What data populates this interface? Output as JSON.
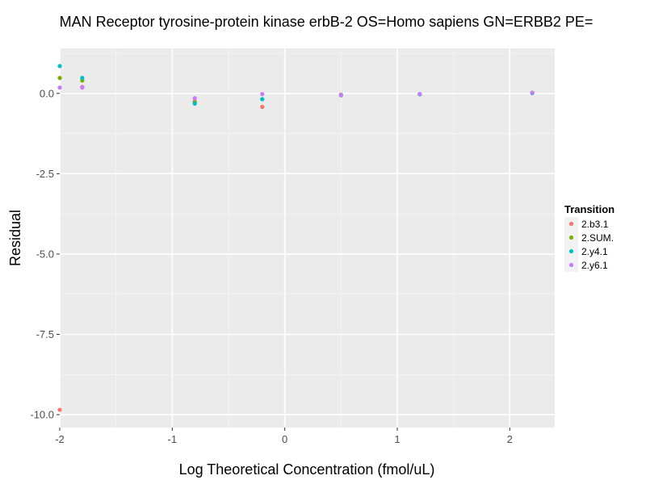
{
  "chart_data": {
    "type": "scatter",
    "title": "MAN Receptor tyrosine-protein kinase erbB-2 OS=Homo sapiens GN=ERBB2 PE=",
    "xlabel": "Log Theoretical Concentration (fmol/uL)",
    "ylabel": "Residual",
    "xlim": [
      -2.0,
      2.4
    ],
    "ylim": [
      -10.4,
      1.4
    ],
    "x_ticks": [
      -2,
      -1,
      0,
      1,
      2
    ],
    "x_tick_labels": [
      "-2",
      "-1",
      "0",
      "1",
      "2"
    ],
    "y_ticks": [
      0.0,
      -2.5,
      -5.0,
      -7.5,
      -10.0
    ],
    "y_tick_labels": [
      "0.0",
      "-2.5",
      "-5.0",
      "-7.5",
      "-10.0"
    ],
    "grid": true,
    "legend": {
      "title": "Transition",
      "position": "right"
    },
    "series": [
      {
        "name": "2.b3.1",
        "color": "#F8766D",
        "points": [
          [
            -2.0,
            -9.85
          ],
          [
            -1.8,
            0.2
          ],
          [
            -0.8,
            -0.25
          ],
          [
            -0.2,
            -0.42
          ],
          [
            0.5,
            -0.05
          ],
          [
            1.2,
            -0.03
          ],
          [
            2.2,
            0.02
          ]
        ]
      },
      {
        "name": "2.SUM.",
        "color": "#7CAE00",
        "points": [
          [
            -2.0,
            0.48
          ],
          [
            -1.8,
            0.4
          ],
          [
            -0.8,
            -0.28
          ],
          [
            -0.2,
            -0.18
          ],
          [
            0.5,
            -0.04
          ],
          [
            1.2,
            -0.02
          ],
          [
            2.2,
            0.02
          ]
        ]
      },
      {
        "name": "2.y4.1",
        "color": "#00BFC4",
        "points": [
          [
            -2.0,
            0.85
          ],
          [
            -1.8,
            0.48
          ],
          [
            -0.8,
            -0.32
          ],
          [
            -0.2,
            -0.18
          ],
          [
            0.5,
            -0.06
          ],
          [
            1.2,
            -0.03
          ],
          [
            2.2,
            0.01
          ]
        ]
      },
      {
        "name": "2.y6.1",
        "color": "#C77CFF",
        "points": [
          [
            -2.0,
            0.18
          ],
          [
            -1.8,
            0.18
          ],
          [
            -0.8,
            -0.15
          ],
          [
            -0.2,
            -0.02
          ],
          [
            0.5,
            -0.05
          ],
          [
            1.2,
            -0.02
          ],
          [
            2.2,
            0.02
          ]
        ]
      }
    ]
  }
}
